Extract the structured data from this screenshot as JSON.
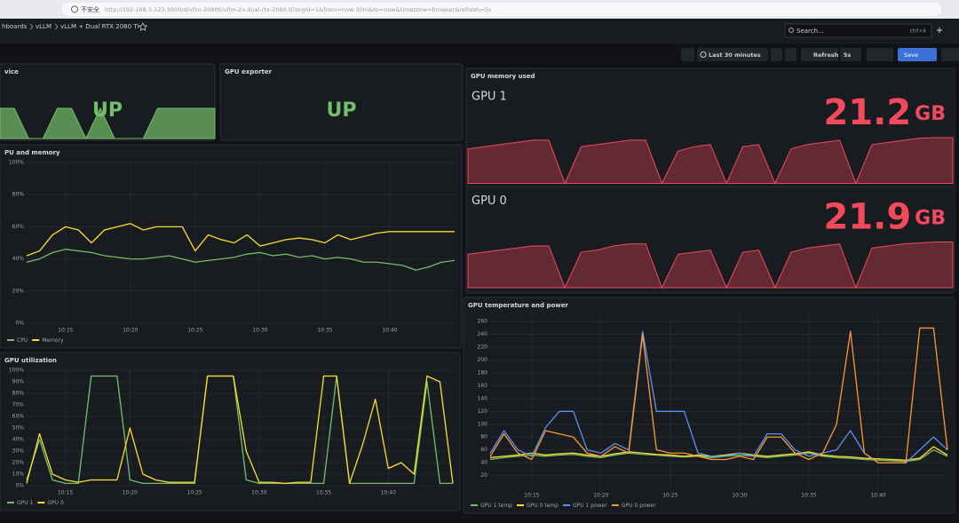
{
  "browser": {
    "security": "不安全",
    "url": "http://192.168.3.123:3000/d/vllm-2080ti/vllm-2x-dual-rtx-2080-ti?orgId=1&from=now-30m&to=now&timezone=browser&refresh=5s"
  },
  "breadcrumbs": [
    "hboards",
    "vLLM",
    "vLLM + Dual RTX 2080 Ti"
  ],
  "search": {
    "placeholder": "Search...",
    "shortcut": "ctrl+k"
  },
  "toolbar": {
    "time_range": "Last 30 minutes",
    "refresh": "Refresh",
    "interval": "5s",
    "save": "Save"
  },
  "panels": [
    {
      "type": "stat",
      "title": "vice",
      "color": "#73bf69",
      "items": [
        {
          "value": "UP",
          "sparkline": [
            1,
            1,
            0,
            0,
            1,
            1,
            0,
            1,
            0,
            0,
            0,
            1,
            1,
            1,
            1,
            1
          ]
        }
      ]
    },
    {
      "type": "stat",
      "title": "GPU exporter",
      "color": "#73bf69",
      "items": [
        {
          "value": "UP"
        }
      ]
    },
    {
      "type": "timeseries",
      "title": "PU and memory",
      "x": [
        12,
        13,
        14,
        15,
        16,
        17,
        18,
        19,
        20,
        21,
        22,
        23,
        24,
        25,
        26,
        27,
        28,
        29,
        30,
        31,
        32,
        33,
        34,
        35,
        36,
        37,
        38,
        39,
        40,
        41,
        42,
        43,
        44,
        45
      ],
      "xlim": [
        12,
        45
      ],
      "xticks": [
        {
          "value": 15,
          "label": "10:15"
        },
        {
          "value": 20,
          "label": "10:20"
        },
        {
          "value": 25,
          "label": "10:25"
        },
        {
          "value": 30,
          "label": "10:30"
        },
        {
          "value": 35,
          "label": "10:35"
        },
        {
          "value": 40,
          "label": "10:40"
        }
      ],
      "ylim": [
        0,
        100
      ],
      "yticks": [
        {
          "value": 0,
          "label": "0%"
        },
        {
          "value": 20,
          "label": "20%"
        },
        {
          "value": 40,
          "label": "40%"
        },
        {
          "value": 60,
          "label": "60%"
        },
        {
          "value": 80,
          "label": "80%"
        },
        {
          "value": 100,
          "label": "100%"
        }
      ],
      "series": [
        {
          "name": "CPU",
          "color": "#73bf69",
          "values": [
            38,
            40,
            44,
            46,
            45,
            44,
            42,
            41,
            40,
            40,
            41,
            42,
            40,
            38,
            39,
            40,
            41,
            43,
            44,
            42,
            43,
            41,
            42,
            40,
            41,
            40,
            38,
            38,
            37,
            36,
            33,
            35,
            38,
            39
          ]
        },
        {
          "name": "Memory",
          "color": "#fade2a",
          "values": [
            42,
            45,
            55,
            60,
            58,
            50,
            58,
            60,
            62,
            58,
            60,
            60,
            60,
            45,
            55,
            52,
            50,
            55,
            48,
            50,
            52,
            53,
            52,
            50,
            55,
            52,
            54,
            56,
            57,
            57,
            57,
            57,
            57,
            57
          ]
        }
      ]
    },
    {
      "type": "timeseries",
      "title": "GPU utilization",
      "x": [
        12,
        13,
        14,
        15,
        16,
        17,
        18,
        19,
        20,
        21,
        22,
        23,
        24,
        25,
        26,
        27,
        28,
        29,
        30,
        31,
        32,
        33,
        34,
        35,
        36,
        37,
        38,
        39,
        40,
        41,
        42,
        43,
        44,
        45
      ],
      "xlim": [
        12,
        45
      ],
      "xticks": [
        {
          "value": 15,
          "label": "10:15"
        },
        {
          "value": 20,
          "label": "10:20"
        },
        {
          "value": 25,
          "label": "10:25"
        },
        {
          "value": 30,
          "label": "10:30"
        },
        {
          "value": 35,
          "label": "10:35"
        },
        {
          "value": 40,
          "label": "10:40"
        }
      ],
      "ylim": [
        0,
        100
      ],
      "yticks": [
        {
          "value": 0,
          "label": "0%"
        },
        {
          "value": 10,
          "label": "10%"
        },
        {
          "value": 20,
          "label": "20%"
        },
        {
          "value": 30,
          "label": "30%"
        },
        {
          "value": 40,
          "label": "40%"
        },
        {
          "value": 50,
          "label": "50%"
        },
        {
          "value": 60,
          "label": "60%"
        },
        {
          "value": 70,
          "label": "70%"
        },
        {
          "value": 80,
          "label": "80%"
        },
        {
          "value": 90,
          "label": "90%"
        },
        {
          "value": 100,
          "label": "100%"
        }
      ],
      "series": [
        {
          "name": "GPU 1",
          "color": "#73bf69",
          "values": [
            5,
            40,
            5,
            2,
            2,
            95,
            95,
            95,
            5,
            2,
            2,
            2,
            2,
            2,
            95,
            95,
            95,
            5,
            2,
            2,
            2,
            2,
            2,
            2,
            95,
            2,
            2,
            2,
            2,
            2,
            2,
            90,
            2,
            2
          ]
        },
        {
          "name": "GPU 0",
          "color": "#fade2a",
          "values": [
            2,
            45,
            10,
            5,
            3,
            5,
            5,
            5,
            50,
            10,
            5,
            3,
            3,
            3,
            95,
            95,
            95,
            30,
            3,
            3,
            2,
            3,
            3,
            95,
            95,
            2,
            35,
            75,
            15,
            20,
            10,
            95,
            90,
            2
          ]
        }
      ]
    },
    {
      "type": "stat",
      "title": "GPU memory used",
      "color": "#f2495c",
      "items": [
        {
          "name": "GPU 1",
          "value": 21.2,
          "unit": "GB",
          "sparkline": [
            16,
            17,
            18,
            19,
            20,
            20,
            0,
            17,
            18,
            19,
            20,
            20,
            0,
            15,
            17,
            18,
            0,
            17,
            18,
            0,
            16,
            18,
            19,
            20,
            0,
            18,
            19,
            20,
            21,
            21.2,
            21.2
          ]
        },
        {
          "name": "GPU 0",
          "value": 21.9,
          "unit": "GB",
          "sparkline": [
            16,
            17,
            18,
            19,
            20,
            20,
            0,
            17,
            18,
            20,
            21,
            21,
            0,
            16,
            17,
            18,
            0,
            17,
            18,
            0,
            17,
            19,
            20,
            21,
            0,
            19,
            20,
            21,
            21.5,
            21.9,
            21.9
          ]
        }
      ]
    },
    {
      "type": "timeseries",
      "title": "GPU temperature and power",
      "x": [
        12,
        13,
        14,
        15,
        16,
        17,
        18,
        19,
        20,
        21,
        22,
        23,
        24,
        25,
        26,
        27,
        28,
        29,
        30,
        31,
        32,
        33,
        34,
        35,
        36,
        37,
        38,
        39,
        40,
        41,
        42,
        43,
        44,
        45
      ],
      "xlim": [
        12,
        45
      ],
      "xticks": [
        {
          "value": 15,
          "label": "10:15"
        },
        {
          "value": 20,
          "label": "10:20"
        },
        {
          "value": 25,
          "label": "10:25"
        },
        {
          "value": 30,
          "label": "10:30"
        },
        {
          "value": 35,
          "label": "10:35"
        },
        {
          "value": 40,
          "label": "10:40"
        }
      ],
      "ylim": [
        0,
        270
      ],
      "yticks": [
        20,
        40,
        60,
        80,
        100,
        120,
        140,
        160,
        180,
        200,
        220,
        240,
        260
      ],
      "series": [
        {
          "name": "GPU 1 temp",
          "color": "#73bf69",
          "values": [
            45,
            48,
            50,
            52,
            50,
            52,
            53,
            50,
            48,
            52,
            55,
            53,
            52,
            50,
            49,
            50,
            48,
            50,
            52,
            50,
            48,
            50,
            52,
            55,
            50,
            48,
            47,
            45,
            44,
            43,
            42,
            45,
            60,
            50
          ]
        },
        {
          "name": "GPU 0 temp",
          "color": "#fade2a",
          "values": [
            48,
            50,
            52,
            55,
            52,
            54,
            55,
            52,
            50,
            54,
            57,
            55,
            53,
            52,
            50,
            52,
            50,
            52,
            55,
            52,
            50,
            52,
            54,
            57,
            52,
            50,
            49,
            47,
            46,
            45,
            44,
            47,
            65,
            52
          ]
        },
        {
          "name": "GPU 1 power",
          "color": "#5794f2",
          "values": [
            55,
            90,
            60,
            50,
            95,
            120,
            120,
            60,
            55,
            70,
            60,
            245,
            120,
            120,
            120,
            55,
            50,
            50,
            55,
            50,
            85,
            85,
            60,
            50,
            55,
            60,
            90,
            55,
            40,
            40,
            40,
            60,
            80,
            60
          ]
        },
        {
          "name": "GPU 0 power",
          "color": "#ff9830",
          "values": [
            50,
            85,
            55,
            45,
            90,
            85,
            80,
            55,
            50,
            65,
            55,
            240,
            60,
            55,
            55,
            50,
            45,
            45,
            50,
            45,
            80,
            80,
            55,
            45,
            55,
            100,
            245,
            55,
            40,
            40,
            40,
            250,
            250,
            60
          ]
        }
      ]
    }
  ]
}
